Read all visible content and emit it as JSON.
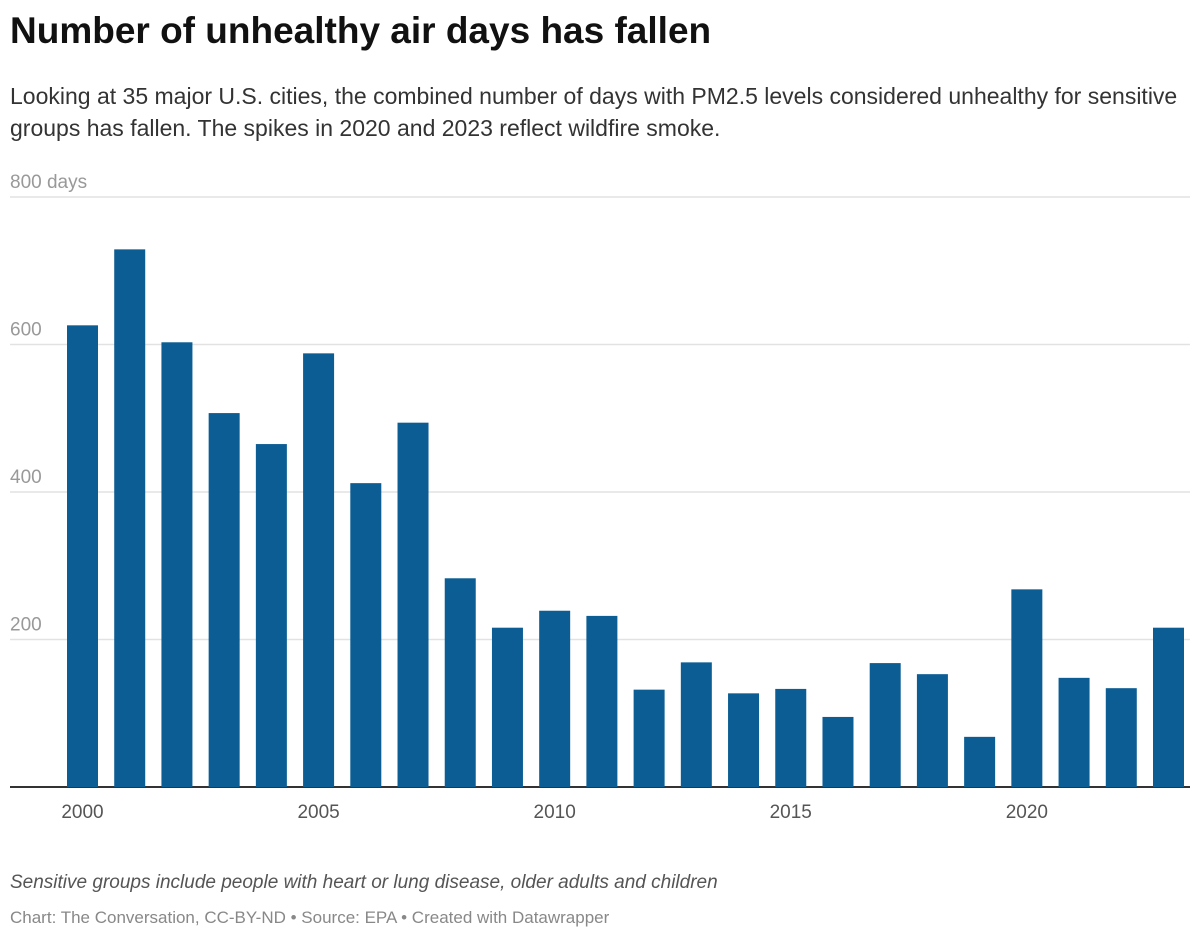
{
  "title": "Number of unhealthy air days has fallen",
  "subtitle": "Looking at 35 major U.S. cities, the combined number of days with PM2.5 levels considered unhealthy for sensitive groups has fallen. The spikes in 2020 and 2023 reflect wildfire smoke.",
  "note": "Sensitive groups include people with heart or lung disease, older adults and children",
  "credit": "Chart: The Conversation, CC-BY-ND • Source: EPA • Created with Datawrapper",
  "chart_data": {
    "type": "bar",
    "title": "Number of unhealthy air days has fallen",
    "xlabel": "",
    "ylabel": "",
    "ylim": [
      0,
      800
    ],
    "y_ticks": [
      "800 days",
      "600",
      "400",
      "200"
    ],
    "y_tick_values": [
      800,
      600,
      400,
      200
    ],
    "x_tick_labels": [
      "2000",
      "2005",
      "2010",
      "2015",
      "2020"
    ],
    "grid": true,
    "bar_color": "#0b5d94",
    "categories": [
      2000,
      2001,
      2002,
      2003,
      2004,
      2005,
      2006,
      2007,
      2008,
      2009,
      2010,
      2011,
      2012,
      2013,
      2014,
      2015,
      2016,
      2017,
      2018,
      2019,
      2020,
      2021,
      2022,
      2023
    ],
    "values": [
      626,
      729,
      603,
      507,
      465,
      588,
      412,
      494,
      283,
      216,
      239,
      232,
      132,
      169,
      127,
      133,
      95,
      168,
      153,
      68,
      268,
      148,
      134,
      216
    ]
  }
}
